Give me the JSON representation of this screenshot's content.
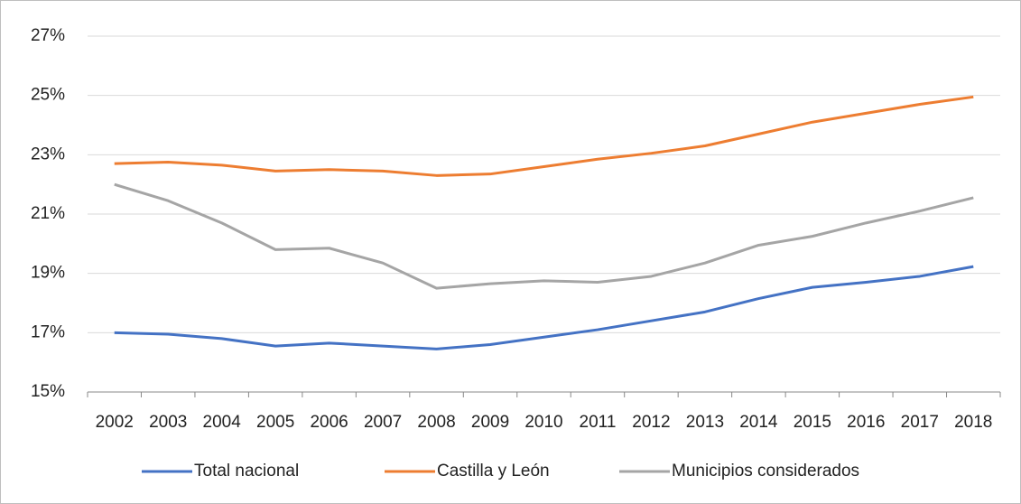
{
  "chart_data": {
    "type": "line",
    "categories": [
      "2002",
      "2003",
      "2004",
      "2005",
      "2006",
      "2007",
      "2008",
      "2009",
      "2010",
      "2011",
      "2012",
      "2013",
      "2014",
      "2015",
      "2016",
      "2017",
      "2018"
    ],
    "series": [
      {
        "name": "Total nacional",
        "color": "#4472c4",
        "values": [
          17.0,
          16.95,
          16.8,
          16.55,
          16.65,
          16.55,
          16.45,
          16.6,
          16.85,
          17.1,
          17.4,
          17.7,
          18.15,
          18.53,
          18.7,
          18.9,
          19.23
        ]
      },
      {
        "name": "Castilla y León",
        "color": "#ed7d31",
        "values": [
          22.7,
          22.75,
          22.65,
          22.45,
          22.5,
          22.45,
          22.3,
          22.35,
          22.6,
          22.85,
          23.05,
          23.3,
          23.7,
          24.1,
          24.4,
          24.7,
          24.95
        ]
      },
      {
        "name": "Municipios considerados",
        "color": "#a5a5a5",
        "values": [
          22.0,
          21.45,
          20.7,
          19.8,
          19.85,
          19.35,
          18.5,
          18.65,
          18.75,
          18.7,
          18.9,
          19.35,
          19.95,
          20.25,
          20.7,
          21.1,
          21.55
        ]
      }
    ],
    "ylim": [
      15,
      27
    ],
    "yticks": [
      {
        "value": 15,
        "label": "15%"
      },
      {
        "value": 17,
        "label": "17%"
      },
      {
        "value": 19,
        "label": "19%"
      },
      {
        "value": 21,
        "label": "21%"
      },
      {
        "value": 23,
        "label": "23%"
      },
      {
        "value": 25,
        "label": "25%"
      },
      {
        "value": 27,
        "label": "27%"
      }
    ],
    "grid": true,
    "legend": "bottom"
  }
}
